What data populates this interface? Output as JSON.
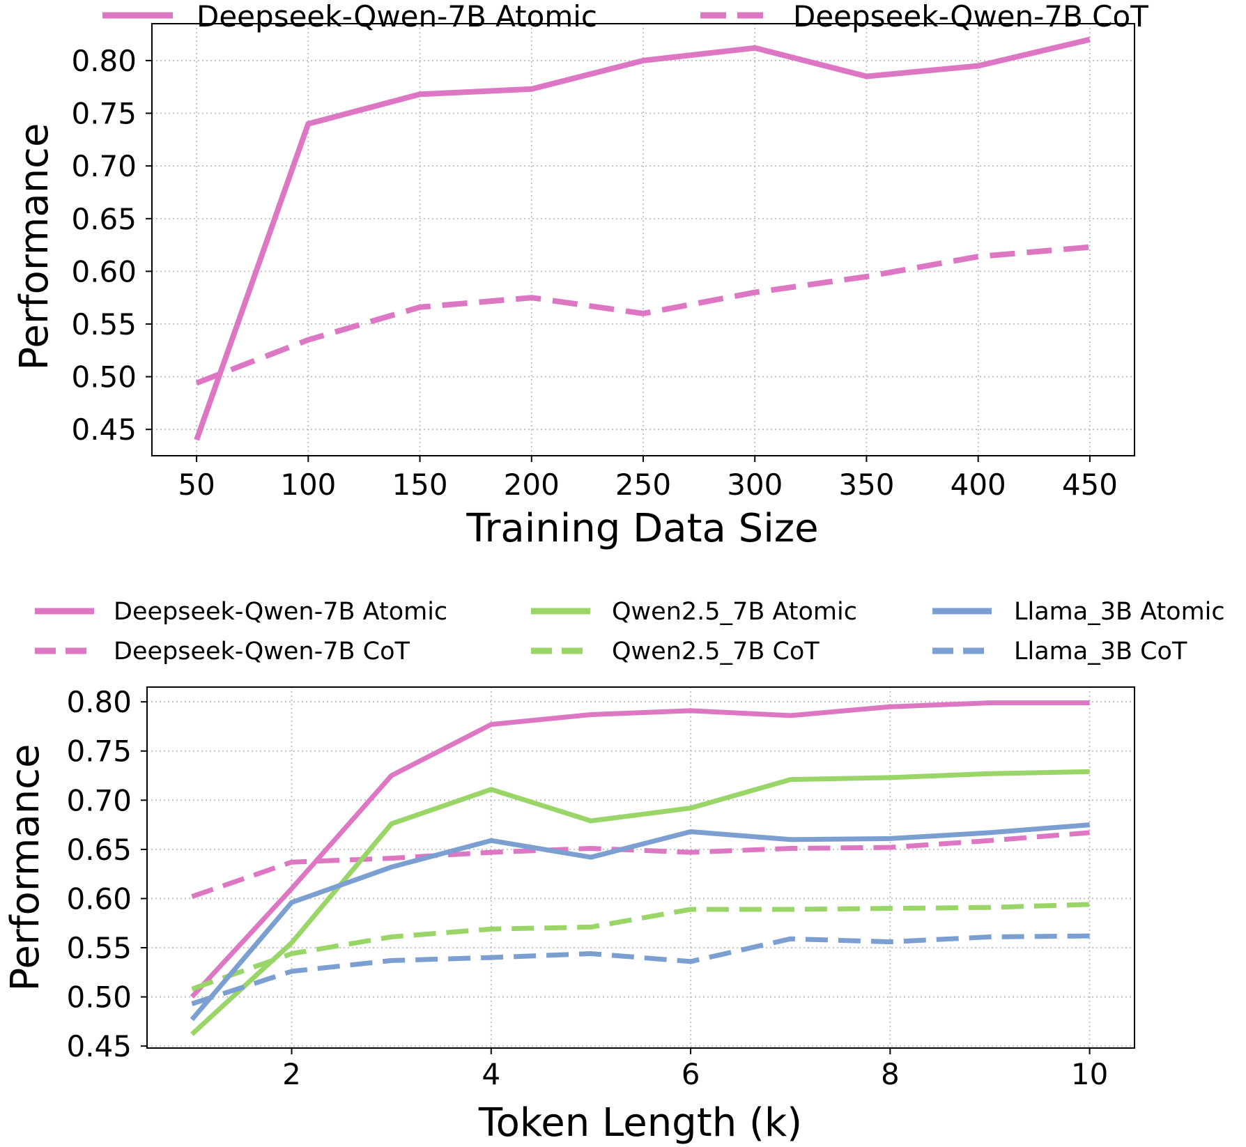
{
  "colors": {
    "deepseek": "#dd77c4",
    "qwen": "#9ad667",
    "llama": "#7c9fd2",
    "grid": "#bdbdbd",
    "axis": "#000000"
  },
  "chart_data": [
    {
      "type": "line",
      "title": "",
      "xlabel": "Training Data Size",
      "ylabel": "Performance",
      "x": [
        50,
        100,
        150,
        200,
        250,
        300,
        350,
        400,
        450
      ],
      "xticks": [
        "50",
        "100",
        "150",
        "200",
        "250",
        "300",
        "350",
        "400",
        "450"
      ],
      "xlim": [
        30,
        470
      ],
      "ylim": [
        0.425,
        0.835
      ],
      "yticks": [
        "0.45",
        "0.50",
        "0.55",
        "0.60",
        "0.65",
        "0.70",
        "0.75",
        "0.80"
      ],
      "ytick_values": [
        0.45,
        0.5,
        0.55,
        0.6,
        0.65,
        0.7,
        0.75,
        0.8
      ],
      "grid": true,
      "legend_position": "top",
      "series": [
        {
          "name": "Deepseek-Qwen-7B Atomic",
          "color": "#dd77c4",
          "dash": "solid",
          "values": [
            0.44,
            0.74,
            0.768,
            0.773,
            0.8,
            0.812,
            0.785,
            0.795,
            0.82
          ]
        },
        {
          "name": "Deepseek-Qwen-7B CoT",
          "color": "#dd77c4",
          "dash": "dashed",
          "values": [
            0.494,
            0.535,
            0.566,
            0.575,
            0.56,
            0.58,
            0.595,
            0.614,
            0.623
          ]
        }
      ]
    },
    {
      "type": "line",
      "title": "",
      "xlabel": "Token Length (k)",
      "ylabel": "Performance",
      "x": [
        1,
        2,
        3,
        4,
        5,
        6,
        7,
        8,
        9,
        10
      ],
      "xticks": [
        "2",
        "4",
        "6",
        "8",
        "10"
      ],
      "xtick_values": [
        2,
        4,
        6,
        8,
        10
      ],
      "xlim": [
        0.55,
        10.45
      ],
      "ylim": [
        0.448,
        0.815
      ],
      "yticks": [
        "0.45",
        "0.50",
        "0.55",
        "0.60",
        "0.65",
        "0.70",
        "0.75",
        "0.80"
      ],
      "ytick_values": [
        0.45,
        0.5,
        0.55,
        0.6,
        0.65,
        0.7,
        0.75,
        0.8
      ],
      "grid": true,
      "legend_position": "top",
      "series": [
        {
          "name": "Deepseek-Qwen-7B Atomic",
          "color": "#dd77c4",
          "dash": "solid",
          "values": [
            0.5,
            0.61,
            0.725,
            0.777,
            0.787,
            0.791,
            0.786,
            0.795,
            0.799,
            0.799
          ]
        },
        {
          "name": "Deepseek-Qwen-7B CoT",
          "color": "#dd77c4",
          "dash": "dashed",
          "values": [
            0.602,
            0.637,
            0.641,
            0.647,
            0.651,
            0.647,
            0.651,
            0.652,
            0.659,
            0.667
          ]
        },
        {
          "name": "Qwen2.5_7B Atomic",
          "color": "#9ad667",
          "dash": "solid",
          "values": [
            0.462,
            0.555,
            0.676,
            0.711,
            0.679,
            0.692,
            0.721,
            0.723,
            0.727,
            0.729
          ]
        },
        {
          "name": "Qwen2.5_7B CoT",
          "color": "#9ad667",
          "dash": "dashed",
          "values": [
            0.508,
            0.544,
            0.561,
            0.569,
            0.571,
            0.589,
            0.589,
            0.59,
            0.591,
            0.594
          ]
        },
        {
          "name": "Llama_3B Atomic",
          "color": "#7c9fd2",
          "dash": "solid",
          "values": [
            0.477,
            0.596,
            0.632,
            0.659,
            0.642,
            0.668,
            0.66,
            0.661,
            0.667,
            0.675
          ]
        },
        {
          "name": "Llama_3B CoT",
          "color": "#7c9fd2",
          "dash": "dashed",
          "values": [
            0.493,
            0.526,
            0.537,
            0.54,
            0.544,
            0.536,
            0.559,
            0.556,
            0.561,
            0.562
          ]
        }
      ]
    }
  ]
}
